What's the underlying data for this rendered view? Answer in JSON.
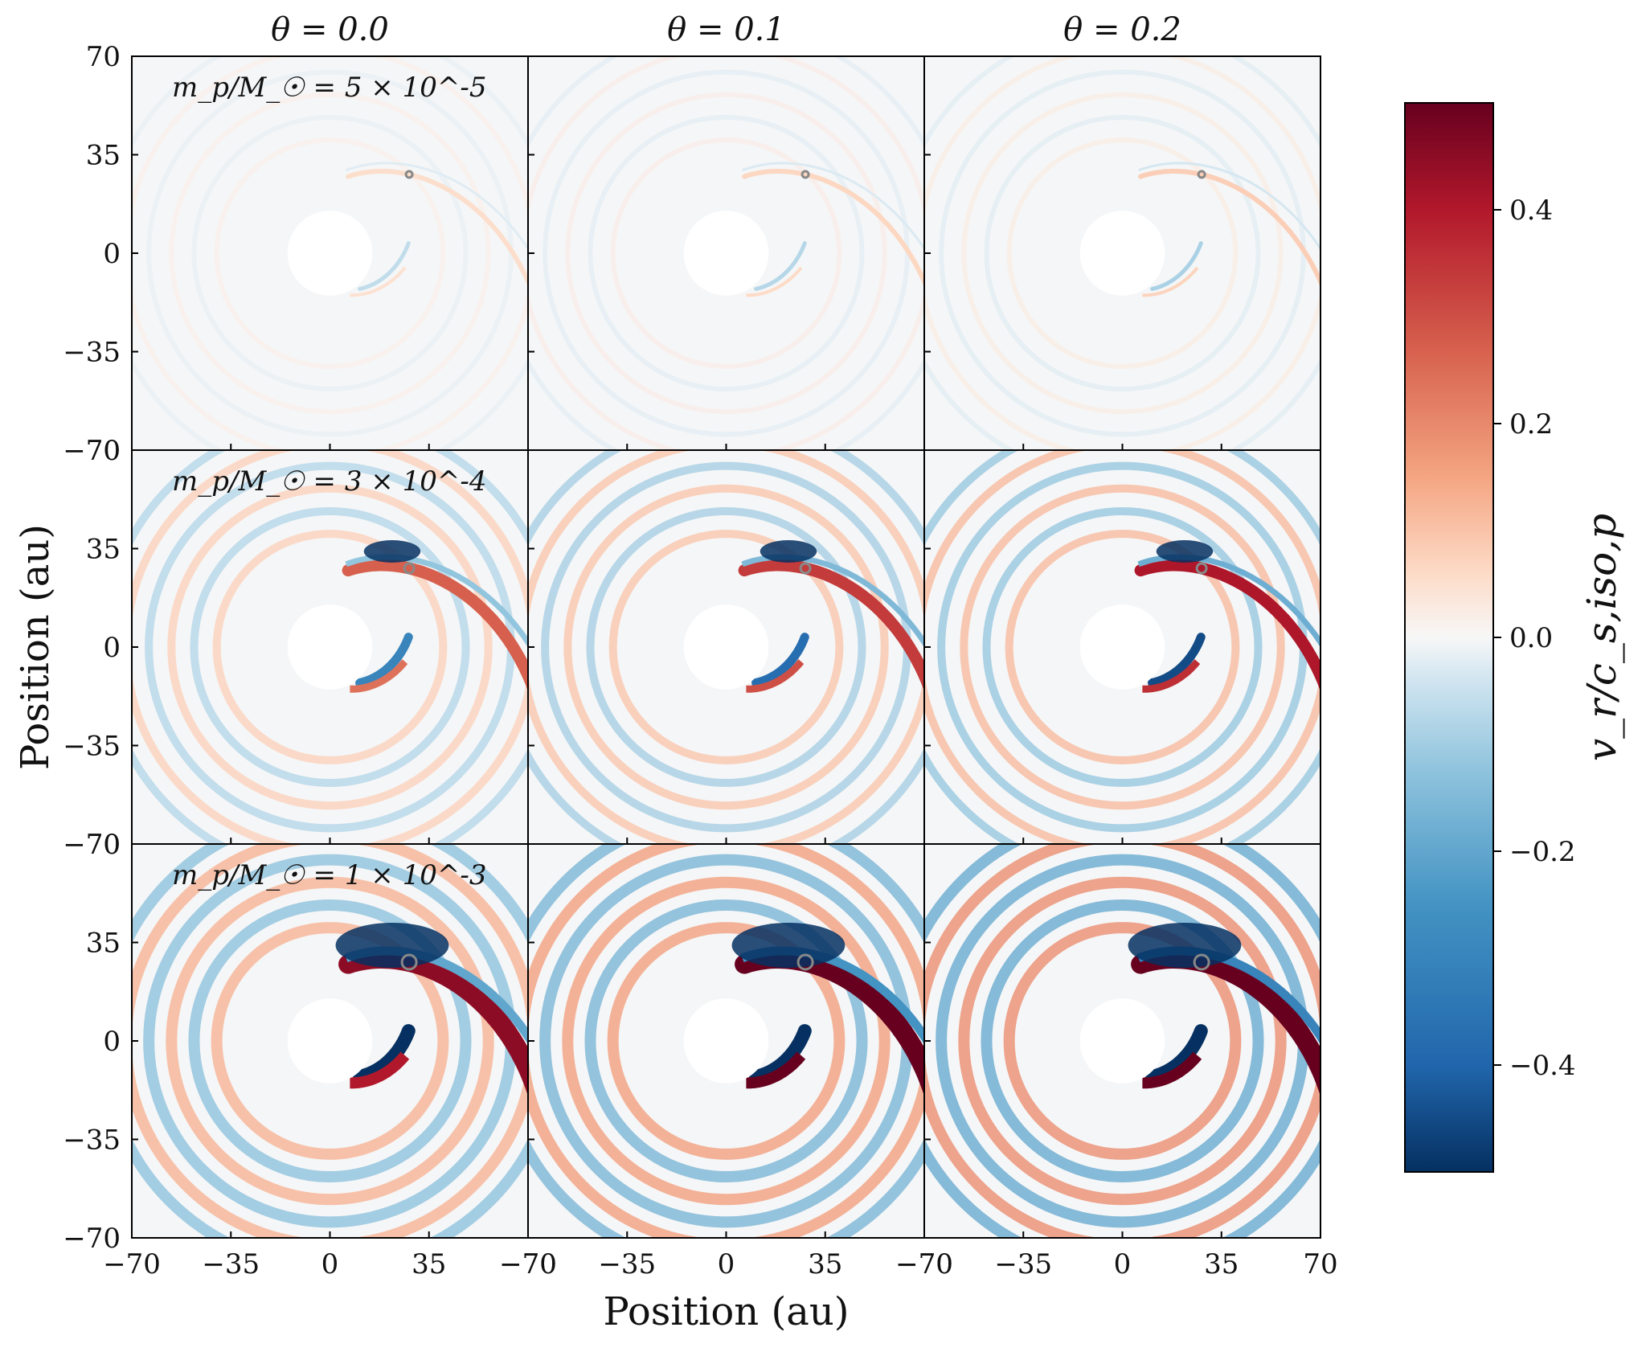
{
  "chart_data": {
    "type": "heatmap",
    "layout": "3x3 panel grid",
    "columns": [
      {
        "label": "θ = 0.0"
      },
      {
        "label": "θ = 0.1"
      },
      {
        "label": "θ = 0.2"
      }
    ],
    "rows": [
      {
        "label": "m_p/M_☉ = 5 × 10^-5"
      },
      {
        "label": "m_p/M_☉ = 3 × 10^-4"
      },
      {
        "label": "m_p/M_☉ = 1 × 10^-3"
      }
    ],
    "xlabel": "Position (au)",
    "ylabel": "Position (au)",
    "xlim": [
      -70,
      70
    ],
    "ylim": [
      -70,
      70
    ],
    "xticks": [
      -70,
      -35,
      0,
      35,
      70
    ],
    "yticks": [
      70,
      35,
      0,
      -35,
      -70
    ],
    "xtick_labels": [
      "−70",
      "−35",
      "0",
      "35",
      "−70"
    ],
    "xtick_labels_last": [
      "−70",
      "−35",
      "0",
      "35",
      "70"
    ],
    "ytick_labels": [
      "70",
      "35",
      "0",
      "−35",
      "−70"
    ],
    "colorbar": {
      "label": "v_r/c_s,iso,p",
      "range": [
        -0.5,
        0.5
      ],
      "ticks": [
        0.4,
        0.2,
        0.0,
        -0.2,
        -0.4
      ],
      "tick_labels": [
        "0.4",
        "0.2",
        "0.0",
        "−0.2",
        "−0.4"
      ],
      "colormap": "RdBu_r",
      "color_low": "#053061",
      "color_mid": "#f7f7f7",
      "color_high": "#67001f"
    },
    "planet_position_au": [
      28,
      28
    ],
    "inner_hole_radius_au": 15,
    "grid": false
  }
}
